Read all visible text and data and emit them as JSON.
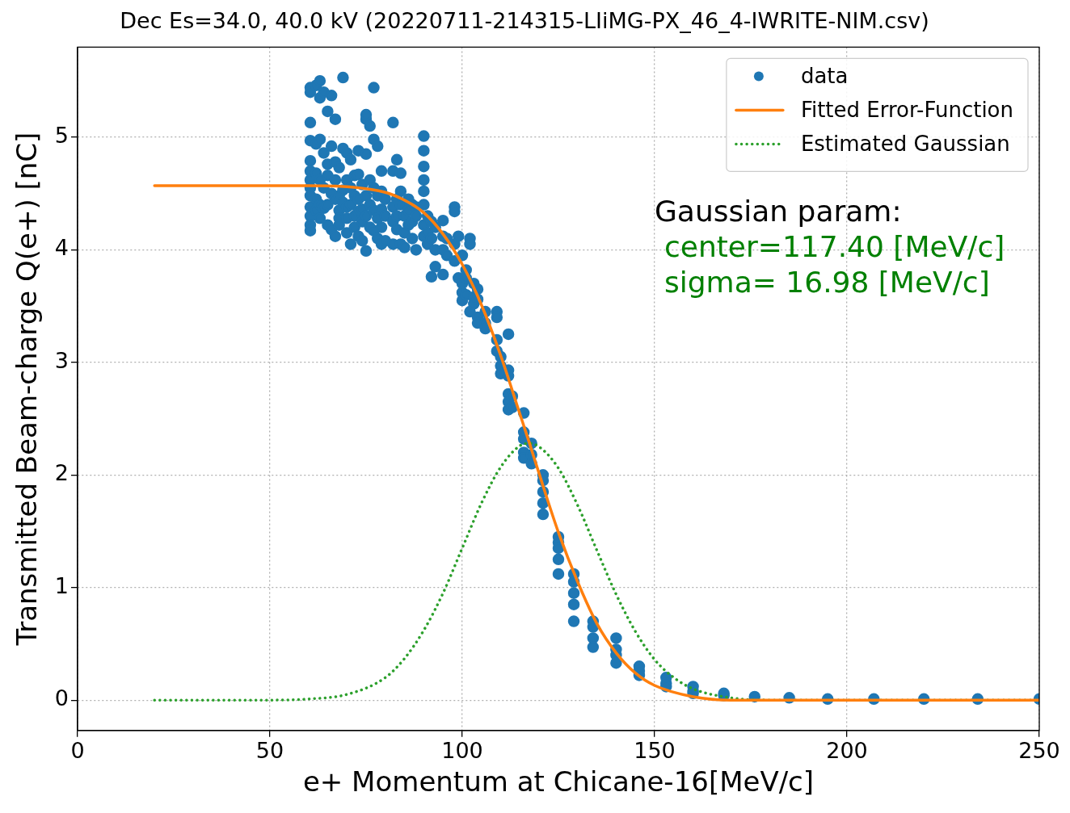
{
  "chart_data": {
    "type": "scatter",
    "title": "Dec Es=34.0, 40.0 kV (20220711-214315-LIiMG-PX_46_4-IWRITE-NIM.csv)",
    "xlabel": "e+ Momentum at Chicane-16[MeV/c]",
    "ylabel": "Transmitted Beam-charge Q(e+) [nC]",
    "xlim": [
      0,
      250
    ],
    "xticks": [
      0,
      50,
      100,
      150,
      200,
      250
    ],
    "ylim": [
      -0.27,
      5.8
    ],
    "yticks": [
      0,
      1,
      2,
      3,
      4,
      5
    ],
    "grid": true,
    "legend": "top right",
    "annotations": [
      "Gaussian param:",
      "center=117.40 [MeV/c]",
      "sigma= 16.98 [MeV/c]"
    ],
    "series": [
      {
        "name": "data",
        "type": "scatter",
        "marker": "circle",
        "color": "#1f77b4",
        "x": [
          60.5,
          60.5,
          60.5,
          60.5,
          60.5,
          60.5,
          60.5,
          60.5,
          60.5,
          60.5,
          60.5,
          60.5,
          60.5,
          62,
          62,
          62,
          62,
          62,
          63,
          63,
          63,
          63,
          63,
          63,
          64,
          64,
          64,
          64,
          65,
          65,
          65,
          65,
          65,
          66,
          66,
          66,
          66,
          67,
          67,
          67,
          67,
          67,
          68,
          68,
          68,
          68,
          68,
          69,
          69,
          69,
          69,
          70,
          70,
          70,
          70,
          70,
          71,
          71,
          71,
          71,
          72,
          72,
          72,
          72,
          73,
          73,
          73,
          73,
          73,
          74,
          74,
          74,
          74,
          75,
          75,
          75,
          75,
          75,
          75,
          76,
          76,
          76,
          76,
          77,
          77,
          77,
          77,
          77,
          78,
          78,
          78,
          78,
          79,
          79,
          79,
          79,
          79,
          80,
          80,
          80,
          82,
          82,
          82,
          82,
          82,
          83,
          83,
          83,
          83,
          84,
          84,
          84,
          84,
          85,
          85,
          85,
          86,
          86,
          86,
          87,
          87,
          87,
          88,
          88,
          88,
          90,
          90,
          90,
          90,
          90,
          90,
          90,
          90,
          91,
          91,
          91,
          92,
          92,
          92,
          93,
          93,
          93,
          95,
          95,
          95,
          95,
          96,
          96,
          98,
          98,
          98,
          98,
          99,
          99,
          100,
          100,
          100,
          100,
          101,
          101,
          101,
          102,
          102,
          102,
          103,
          103,
          103,
          104,
          104,
          104,
          104,
          106,
          106,
          106,
          109,
          109,
          109,
          109,
          110,
          110,
          110,
          112,
          112,
          112,
          112,
          112,
          112,
          113,
          113,
          116,
          116,
          116,
          116,
          116,
          118,
          118,
          118,
          121,
          121,
          121,
          121,
          121,
          125,
          125,
          125,
          125,
          125,
          129,
          129,
          129,
          129,
          129,
          134,
          134,
          134,
          134,
          140,
          140,
          140,
          140,
          146,
          146,
          146,
          153,
          153,
          153,
          160,
          160,
          160,
          168,
          168,
          176,
          185,
          195,
          207,
          220,
          234,
          250
        ],
        "values": [
          5.44,
          5.4,
          5.13,
          4.97,
          4.79,
          4.7,
          4.62,
          4.55,
          4.48,
          4.38,
          4.3,
          4.22,
          4.17,
          5.46,
          4.94,
          4.68,
          4.45,
          4.35,
          5.5,
          5.35,
          4.98,
          4.62,
          4.4,
          4.28,
          5.4,
          4.86,
          4.55,
          4.37,
          5.23,
          4.76,
          4.66,
          4.4,
          4.22,
          5.37,
          4.92,
          4.5,
          4.18,
          5.16,
          4.78,
          4.62,
          4.45,
          4.12,
          4.73,
          4.48,
          4.35,
          4.28,
          4.22,
          5.53,
          4.9,
          4.53,
          4.42,
          4.86,
          4.62,
          4.38,
          4.28,
          4.15,
          4.8,
          4.55,
          4.4,
          4.05,
          4.66,
          4.48,
          4.3,
          4.2,
          4.88,
          4.67,
          4.45,
          4.34,
          4.12,
          4.58,
          4.36,
          4.25,
          4.08,
          5.16,
          5.2,
          4.85,
          4.48,
          3.99,
          4.3,
          5.1,
          4.62,
          4.4,
          4.2,
          5.44,
          4.98,
          4.55,
          4.35,
          4.17,
          4.92,
          4.48,
          4.28,
          4.1,
          4.7,
          4.52,
          4.36,
          4.2,
          4.05,
          4.45,
          4.3,
          4.08,
          5.13,
          4.7,
          4.38,
          4.25,
          4.05,
          4.8,
          4.45,
          4.3,
          4.18,
          4.68,
          4.52,
          4.4,
          4.05,
          4.3,
          4.15,
          4.02,
          4.45,
          4.35,
          4.22,
          4.4,
          4.25,
          4.1,
          4.38,
          4.3,
          4.0,
          5.01,
          4.88,
          4.74,
          4.62,
          4.52,
          4.4,
          4.22,
          4.12,
          4.3,
          4.15,
          4.05,
          4.25,
          4.1,
          3.76,
          4.2,
          4.0,
          3.85,
          4.26,
          4.12,
          4.0,
          3.78,
          4.1,
          3.95,
          4.38,
          4.34,
          4.05,
          3.9,
          4.12,
          3.75,
          3.95,
          3.7,
          3.62,
          3.55,
          3.82,
          3.75,
          3.6,
          4.1,
          4.05,
          3.45,
          3.7,
          3.58,
          3.52,
          3.65,
          3.56,
          3.4,
          3.35,
          3.45,
          3.35,
          3.3,
          3.45,
          3.4,
          3.2,
          3.1,
          3.05,
          2.97,
          2.9,
          3.25,
          2.93,
          2.88,
          2.72,
          2.65,
          2.58,
          2.7,
          2.6,
          2.55,
          2.38,
          2.32,
          2.2,
          2.15,
          2.28,
          2.18,
          2.1,
          2.0,
          1.95,
          1.85,
          1.75,
          1.65,
          1.45,
          1.4,
          1.35,
          1.25,
          1.12,
          1.12,
          1.05,
          0.95,
          0.85,
          0.7,
          0.7,
          0.65,
          0.55,
          0.47,
          0.55,
          0.45,
          0.4,
          0.33,
          0.3,
          0.26,
          0.22,
          0.2,
          0.15,
          0.12,
          0.12,
          0.08,
          0.06,
          0.06,
          0.04,
          0.03,
          0.02,
          0.01,
          0.01,
          0.01,
          0.01,
          0.01
        ]
      },
      {
        "name": "Fitted Error-Function",
        "type": "line",
        "line_style": "solid",
        "color": "#ff7f0e",
        "x": [
          20,
          60,
          70,
          80,
          85,
          90,
          95,
          100,
          105,
          110,
          115,
          117.4,
          120,
          125,
          130,
          135,
          140,
          145,
          150,
          160,
          170,
          250
        ],
        "values": [
          4.57,
          4.57,
          4.56,
          4.51,
          4.44,
          4.33,
          4.14,
          3.87,
          3.51,
          3.06,
          2.54,
          2.29,
          2.01,
          1.49,
          1.05,
          0.68,
          0.42,
          0.24,
          0.13,
          0.03,
          0,
          0
        ]
      },
      {
        "name": "Estimated Gaussian",
        "type": "line",
        "line_style": "dotted",
        "color": "#2ca02c",
        "x": [
          20,
          50,
          60,
          70,
          80,
          85,
          90,
          95,
          100,
          105,
          110,
          115,
          117.4,
          120,
          125,
          130,
          135,
          140,
          145,
          150,
          155,
          160,
          170,
          180,
          250
        ],
        "values": [
          0,
          0,
          0.01,
          0.05,
          0.2,
          0.37,
          0.62,
          0.95,
          1.35,
          1.75,
          2.07,
          2.26,
          2.28,
          2.25,
          2.06,
          1.73,
          1.33,
          0.94,
          0.61,
          0.36,
          0.2,
          0.1,
          0.02,
          0,
          0
        ]
      }
    ]
  }
}
